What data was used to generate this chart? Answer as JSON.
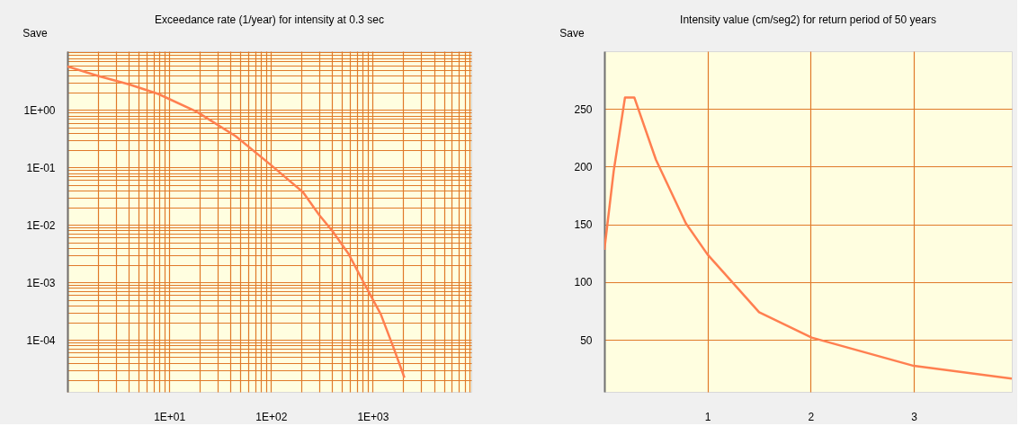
{
  "chart_data": [
    {
      "type": "line",
      "title": "Exceedance rate (1/year) for intensity at 0.3 sec",
      "annotations": [
        "Save"
      ],
      "log": "xy",
      "grid": true,
      "marker": "none",
      "line_style": "solid",
      "x": [
        1,
        2,
        4,
        7.8,
        18.7,
        45,
        100,
        207,
        297,
        400,
        575,
        830,
        1200,
        1590,
        2050
      ],
      "series": [
        {
          "color": "#ff7f50",
          "values": [
            5.7,
            3.9,
            2.8,
            1.9,
            0.93,
            0.35,
            0.11,
            0.037,
            0.015,
            0.0079,
            0.0032,
            0.00094,
            0.00028,
            7.6e-05,
            2.2e-05
          ]
        }
      ],
      "xlim": [
        1,
        9300
      ],
      "ylim": [
        1.25e-05,
        10.5
      ],
      "xticks": [
        {
          "value": 1,
          "label": null
        },
        {
          "value": 2,
          "label": null
        },
        {
          "value": 3,
          "label": null
        },
        {
          "value": 4,
          "label": null
        },
        {
          "value": 5,
          "label": null
        },
        {
          "value": 6,
          "label": null
        },
        {
          "value": 7,
          "label": null
        },
        {
          "value": 8,
          "label": null
        },
        {
          "value": 9,
          "label": null
        },
        {
          "value": 10,
          "label": "1E+01"
        },
        {
          "value": 20,
          "label": null
        },
        {
          "value": 30,
          "label": null
        },
        {
          "value": 40,
          "label": null
        },
        {
          "value": 50,
          "label": null
        },
        {
          "value": 60,
          "label": null
        },
        {
          "value": 70,
          "label": null
        },
        {
          "value": 80,
          "label": null
        },
        {
          "value": 90,
          "label": null
        },
        {
          "value": 100,
          "label": "1E+02"
        },
        {
          "value": 200,
          "label": null
        },
        {
          "value": 300,
          "label": null
        },
        {
          "value": 400,
          "label": null
        },
        {
          "value": 500,
          "label": null
        },
        {
          "value": 600,
          "label": null
        },
        {
          "value": 700,
          "label": null
        },
        {
          "value": 800,
          "label": null
        },
        {
          "value": 900,
          "label": null
        },
        {
          "value": 1000,
          "label": "1E+03"
        },
        {
          "value": 2000,
          "label": null
        },
        {
          "value": 3000,
          "label": null
        },
        {
          "value": 4000,
          "label": null
        },
        {
          "value": 5000,
          "label": null
        },
        {
          "value": 6000,
          "label": null
        },
        {
          "value": 7000,
          "label": null
        },
        {
          "value": 8000,
          "label": null
        },
        {
          "value": 9000,
          "label": null
        }
      ],
      "yticks": [
        {
          "value": 2e-05,
          "label": null
        },
        {
          "value": 3e-05,
          "label": null
        },
        {
          "value": 4e-05,
          "label": null
        },
        {
          "value": 5e-05,
          "label": null
        },
        {
          "value": 6e-05,
          "label": null
        },
        {
          "value": 7e-05,
          "label": null
        },
        {
          "value": 8e-05,
          "label": null
        },
        {
          "value": 9e-05,
          "label": null
        },
        {
          "value": 0.0001,
          "label": "1E-04"
        },
        {
          "value": 0.0002,
          "label": null
        },
        {
          "value": 0.0003,
          "label": null
        },
        {
          "value": 0.0004,
          "label": null
        },
        {
          "value": 0.0005,
          "label": null
        },
        {
          "value": 0.0006,
          "label": null
        },
        {
          "value": 0.0007,
          "label": null
        },
        {
          "value": 0.0008,
          "label": null
        },
        {
          "value": 0.0009,
          "label": null
        },
        {
          "value": 0.001,
          "label": "1E-03"
        },
        {
          "value": 0.002,
          "label": null
        },
        {
          "value": 0.003,
          "label": null
        },
        {
          "value": 0.004,
          "label": null
        },
        {
          "value": 0.005,
          "label": null
        },
        {
          "value": 0.006,
          "label": null
        },
        {
          "value": 0.007,
          "label": null
        },
        {
          "value": 0.008,
          "label": null
        },
        {
          "value": 0.009,
          "label": null
        },
        {
          "value": 0.01,
          "label": "1E-02"
        },
        {
          "value": 0.02,
          "label": null
        },
        {
          "value": 0.03,
          "label": null
        },
        {
          "value": 0.04,
          "label": null
        },
        {
          "value": 0.05,
          "label": null
        },
        {
          "value": 0.06,
          "label": null
        },
        {
          "value": 0.07,
          "label": null
        },
        {
          "value": 0.08,
          "label": null
        },
        {
          "value": 0.09,
          "label": null
        },
        {
          "value": 0.1,
          "label": "1E-01"
        },
        {
          "value": 0.2,
          "label": null
        },
        {
          "value": 0.3,
          "label": null
        },
        {
          "value": 0.4,
          "label": null
        },
        {
          "value": 0.5,
          "label": null
        },
        {
          "value": 0.6,
          "label": null
        },
        {
          "value": 0.7,
          "label": null
        },
        {
          "value": 0.8,
          "label": null
        },
        {
          "value": 0.9,
          "label": null
        },
        {
          "value": 1,
          "label": "1E+00"
        },
        {
          "value": 2,
          "label": null
        },
        {
          "value": 3,
          "label": null
        },
        {
          "value": 4,
          "label": null
        },
        {
          "value": 5,
          "label": null
        },
        {
          "value": 6,
          "label": null
        },
        {
          "value": 7,
          "label": null
        },
        {
          "value": 8,
          "label": null
        },
        {
          "value": 9,
          "label": null
        },
        {
          "value": 10,
          "label": null
        }
      ]
    },
    {
      "type": "line",
      "title": "Intensity value (cm/seg2) for return period of 50 years",
      "annotations": [
        "Save"
      ],
      "grid": true,
      "marker": "none",
      "line_style": "solid",
      "x": [
        0,
        0.09,
        0.2,
        0.29,
        0.5,
        0.79,
        1.0,
        1.5,
        2.01,
        3.0,
        3.95
      ],
      "series": [
        {
          "color": "#ff7f50",
          "values": [
            128,
            196,
            260,
            260,
            206,
            151,
            124,
            74,
            52,
            27.5,
            16.4
          ]
        }
      ],
      "xlim": [
        0,
        3.95
      ],
      "ylim": [
        5,
        300
      ],
      "xticks": [
        1,
        2,
        3
      ],
      "yticks": [
        50,
        100,
        150,
        200,
        250
      ]
    }
  ]
}
